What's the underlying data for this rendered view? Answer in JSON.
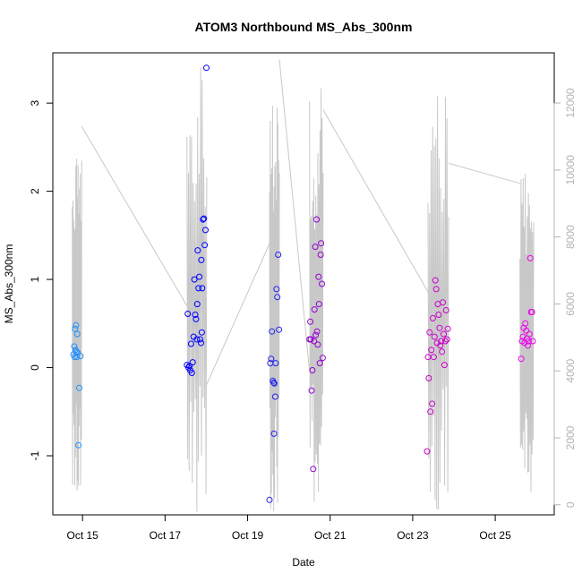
{
  "chart_data": {
    "type": "scatter",
    "title": "ATOM3 Northbound MS_Abs_300nm",
    "xlabel": "Date",
    "ylabel": "MS_Abs_300nm",
    "x_ticks": [
      {
        "value": 14.85,
        "label": "Oct 15"
      },
      {
        "value": 16.85,
        "label": "Oct 17"
      },
      {
        "value": 18.85,
        "label": "Oct 19"
      },
      {
        "value": 20.85,
        "label": "Oct 21"
      },
      {
        "value": 22.85,
        "label": "Oct 23"
      },
      {
        "value": 24.85,
        "label": "Oct 25"
      }
    ],
    "xlim": [
      14.13,
      26.28
    ],
    "ylim": [
      -1.67,
      3.57
    ],
    "y_ticks": [
      -1,
      0,
      1,
      2,
      3
    ],
    "y2lim": [
      -300,
      13500
    ],
    "y2_ticks": [
      0,
      2000,
      4000,
      6000,
      8000,
      10000,
      12000
    ],
    "grid": false,
    "series": [
      {
        "color": "#1e90ff",
        "points": [
          [
            14.63,
            0.15
          ],
          [
            14.65,
            0.24
          ],
          [
            14.66,
            0.12
          ],
          [
            14.67,
            0.44
          ],
          [
            14.68,
            0.2
          ],
          [
            14.69,
            0.48
          ],
          [
            14.7,
            0.18
          ],
          [
            14.71,
            0.12
          ],
          [
            14.72,
            0.38
          ],
          [
            14.73,
            0.17
          ],
          [
            14.75,
            -0.88
          ],
          [
            14.77,
            -0.23
          ],
          [
            14.8,
            0.13
          ]
        ]
      },
      {
        "color": "#0000ff",
        "points": [
          [
            17.38,
            0.03
          ],
          [
            17.4,
            0.61
          ],
          [
            17.42,
            0.0
          ],
          [
            17.44,
            0.02
          ],
          [
            17.46,
            -0.03
          ],
          [
            17.48,
            0.27
          ],
          [
            17.5,
            -0.06
          ],
          [
            17.52,
            0.06
          ],
          [
            17.54,
            0.35
          ],
          [
            17.56,
            1.0
          ],
          [
            17.58,
            0.6
          ],
          [
            17.6,
            0.55
          ],
          [
            17.62,
            0.32
          ],
          [
            17.63,
            0.72
          ],
          [
            17.64,
            1.33
          ],
          [
            17.66,
            0.9
          ],
          [
            17.68,
            1.03
          ],
          [
            17.7,
            0.32
          ],
          [
            17.72,
            0.28
          ],
          [
            17.73,
            1.22
          ],
          [
            17.74,
            0.4
          ],
          [
            17.75,
            0.9
          ],
          [
            17.77,
            1.68
          ],
          [
            17.79,
            1.69
          ],
          [
            17.81,
            1.39
          ],
          [
            17.83,
            1.56
          ],
          [
            17.85,
            3.4
          ]
        ]
      },
      {
        "color": "#2222ee",
        "points": [
          [
            19.38,
            -1.5
          ],
          [
            19.4,
            0.05
          ],
          [
            19.42,
            0.1
          ],
          [
            19.44,
            0.41
          ],
          [
            19.46,
            -0.15
          ],
          [
            19.48,
            -0.17
          ],
          [
            19.49,
            -0.75
          ],
          [
            19.5,
            -0.18
          ],
          [
            19.52,
            -0.33
          ],
          [
            19.53,
            0.05
          ],
          [
            19.55,
            0.89
          ],
          [
            19.57,
            0.8
          ],
          [
            19.59,
            1.28
          ],
          [
            19.61,
            0.43
          ]
        ]
      },
      {
        "color": "#9400d3",
        "points": [
          [
            20.35,
            0.32
          ],
          [
            20.37,
            0.52
          ],
          [
            20.38,
            0.32
          ],
          [
            20.4,
            -0.26
          ],
          [
            20.42,
            -0.03
          ],
          [
            20.44,
            -1.15
          ],
          [
            20.46,
            0.3
          ],
          [
            20.47,
            0.66
          ],
          [
            20.49,
            1.37
          ],
          [
            20.5,
            0.37
          ],
          [
            20.52,
            1.68
          ],
          [
            20.53,
            0.41
          ],
          [
            20.55,
            0.26
          ],
          [
            20.57,
            1.03
          ],
          [
            20.58,
            0.72
          ],
          [
            20.6,
            0.05
          ],
          [
            20.62,
            1.28
          ],
          [
            20.63,
            1.41
          ],
          [
            20.65,
            0.95
          ],
          [
            20.67,
            0.11
          ]
        ]
      },
      {
        "color": "#cc00cc",
        "points": [
          [
            23.2,
            -0.95
          ],
          [
            23.22,
            0.12
          ],
          [
            23.24,
            -0.12
          ],
          [
            23.26,
            0.4
          ],
          [
            23.28,
            -0.5
          ],
          [
            23.3,
            0.2
          ],
          [
            23.32,
            -0.41
          ],
          [
            23.34,
            0.56
          ],
          [
            23.36,
            0.12
          ],
          [
            23.38,
            0.35
          ],
          [
            23.4,
            0.99
          ],
          [
            23.42,
            0.89
          ],
          [
            23.44,
            0.28
          ],
          [
            23.46,
            0.72
          ],
          [
            23.48,
            0.6
          ],
          [
            23.5,
            0.45
          ],
          [
            23.52,
            0.25
          ],
          [
            23.54,
            0.3
          ],
          [
            23.56,
            0.18
          ],
          [
            23.58,
            0.74
          ],
          [
            23.6,
            0.38
          ],
          [
            23.62,
            0.03
          ],
          [
            23.64,
            0.3
          ],
          [
            23.66,
            0.65
          ],
          [
            23.68,
            0.32
          ],
          [
            23.7,
            0.44
          ]
        ]
      },
      {
        "color": "#ee00ee",
        "points": [
          [
            25.48,
            0.1
          ],
          [
            25.5,
            0.3
          ],
          [
            25.52,
            0.35
          ],
          [
            25.54,
            0.45
          ],
          [
            25.56,
            0.28
          ],
          [
            25.58,
            0.5
          ],
          [
            25.6,
            0.42
          ],
          [
            25.62,
            0.33
          ],
          [
            25.64,
            0.25
          ],
          [
            25.66,
            0.3
          ],
          [
            25.68,
            0.38
          ],
          [
            25.7,
            1.24
          ],
          [
            25.72,
            0.63
          ],
          [
            25.74,
            0.63
          ],
          [
            25.76,
            0.3
          ]
        ]
      }
    ],
    "altitude_line": {
      "color": "#c8c8c8",
      "axis": "right",
      "bursts": [
        {
          "x0": 14.6,
          "x1": 14.83,
          "lo": -200,
          "hi": 10800
        },
        {
          "x0": 17.38,
          "x1": 17.86,
          "lo": -300,
          "hi": 13100
        },
        {
          "x0": 19.38,
          "x1": 19.62,
          "lo": -200,
          "hi": 12200
        },
        {
          "x0": 20.35,
          "x1": 20.68,
          "lo": -200,
          "hi": 12600
        },
        {
          "x0": 23.22,
          "x1": 23.72,
          "lo": -250,
          "hi": 12800
        },
        {
          "x0": 25.45,
          "x1": 25.78,
          "lo": -100,
          "hi": 10200
        }
      ],
      "links": [
        [
          [
            14.83,
            11300
          ],
          [
            17.4,
            5900
          ]
        ],
        [
          [
            17.86,
            3600
          ],
          [
            19.38,
            7800
          ]
        ],
        [
          [
            19.62,
            13300
          ],
          [
            20.35,
            4000
          ]
        ],
        [
          [
            20.68,
            11800
          ],
          [
            23.25,
            6300
          ]
        ],
        [
          [
            23.72,
            10200
          ],
          [
            25.45,
            9600
          ]
        ]
      ]
    }
  }
}
